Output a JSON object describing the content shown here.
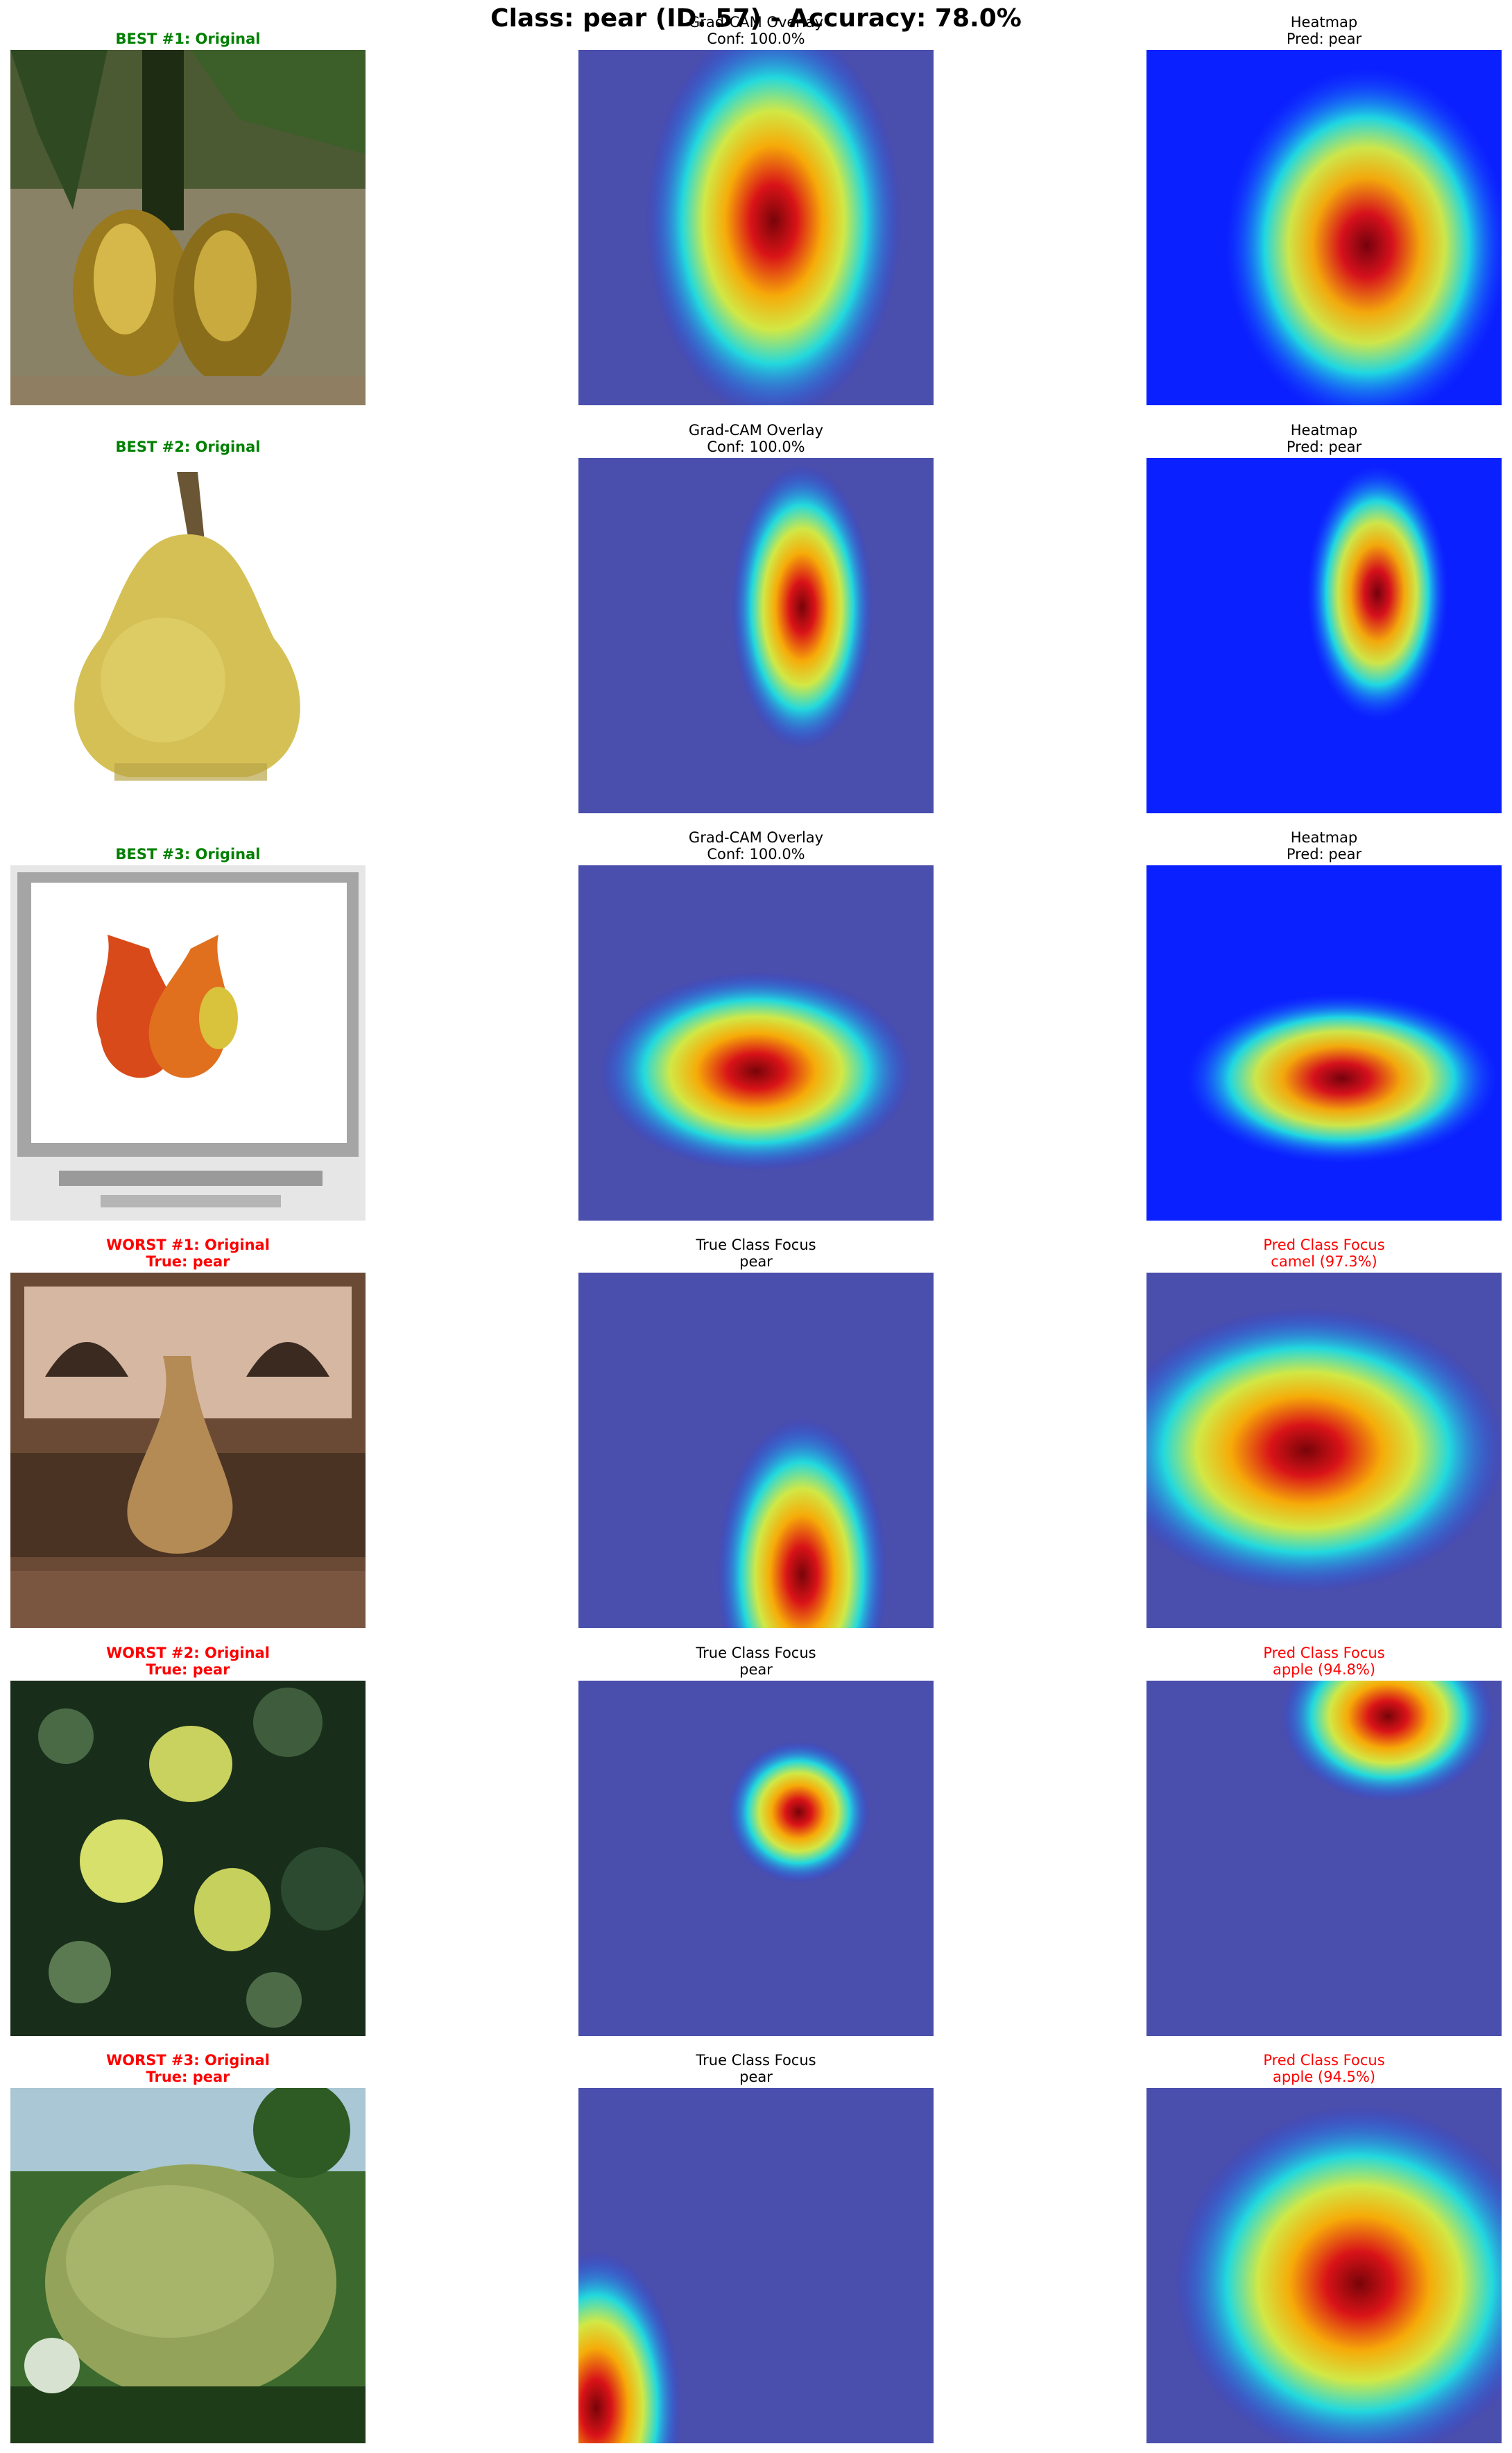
{
  "suptitle": "Class: pear (ID: 57) - Accuracy: 78.0%",
  "colors": {
    "best": "#008000",
    "worst": "#ff0000",
    "normal": "#000000"
  },
  "rows": [
    {
      "cells": [
        {
          "line1": "BEST #1: Original",
          "line2": "",
          "color": "best",
          "bold": true,
          "image": "pear-pair-photo"
        },
        {
          "line1": "Grad-CAM Overlay",
          "line2": "Conf: 100.0%",
          "color": "normal",
          "bold": false,
          "image": "gradcam-overlay"
        },
        {
          "line1": "Heatmap",
          "line2": "Pred: pear",
          "color": "normal",
          "bold": false,
          "image": "heatmap"
        }
      ]
    },
    {
      "cells": [
        {
          "line1": "BEST #2: Original",
          "line2": "",
          "color": "best",
          "bold": true,
          "image": "single-pear-photo"
        },
        {
          "line1": "Grad-CAM Overlay",
          "line2": "Conf: 100.0%",
          "color": "normal",
          "bold": false,
          "image": "gradcam-overlay"
        },
        {
          "line1": "Heatmap",
          "line2": "Pred: pear",
          "color": "normal",
          "bold": false,
          "image": "heatmap"
        }
      ]
    },
    {
      "cells": [
        {
          "line1": "BEST #3: Original",
          "line2": "",
          "color": "best",
          "bold": true,
          "image": "framed-pears-photo"
        },
        {
          "line1": "Grad-CAM Overlay",
          "line2": "Conf: 100.0%",
          "color": "normal",
          "bold": false,
          "image": "gradcam-overlay"
        },
        {
          "line1": "Heatmap",
          "line2": "Pred: pear",
          "color": "normal",
          "bold": false,
          "image": "heatmap"
        }
      ]
    },
    {
      "cells": [
        {
          "line1": "WORST #1: Original",
          "line2": "True: pear",
          "color": "worst",
          "bold": true,
          "image": "brown-scene-photo"
        },
        {
          "line1": "True Class Focus",
          "line2": "pear",
          "color": "normal",
          "bold": false,
          "image": "true-class-overlay"
        },
        {
          "line1": "Pred Class Focus",
          "line2": "camel (97.3%)",
          "color": "worst",
          "bold": false,
          "image": "pred-class-overlay"
        }
      ]
    },
    {
      "cells": [
        {
          "line1": "WORST #2: Original",
          "line2": "True: pear",
          "color": "worst",
          "bold": true,
          "image": "tree-pears-photo"
        },
        {
          "line1": "True Class Focus",
          "line2": "pear",
          "color": "normal",
          "bold": false,
          "image": "true-class-overlay"
        },
        {
          "line1": "Pred Class Focus",
          "line2": "apple (94.8%)",
          "color": "worst",
          "bold": false,
          "image": "pred-class-overlay"
        }
      ]
    },
    {
      "cells": [
        {
          "line1": "WORST #3: Original",
          "line2": "True: pear",
          "color": "worst",
          "bold": true,
          "image": "green-pear-photo"
        },
        {
          "line1": "True Class Focus",
          "line2": "pear",
          "color": "normal",
          "bold": false,
          "image": "true-class-overlay"
        },
        {
          "line1": "Pred Class Focus",
          "line2": "apple (94.5%)",
          "color": "worst",
          "bold": false,
          "image": "pred-class-overlay"
        }
      ]
    }
  ]
}
